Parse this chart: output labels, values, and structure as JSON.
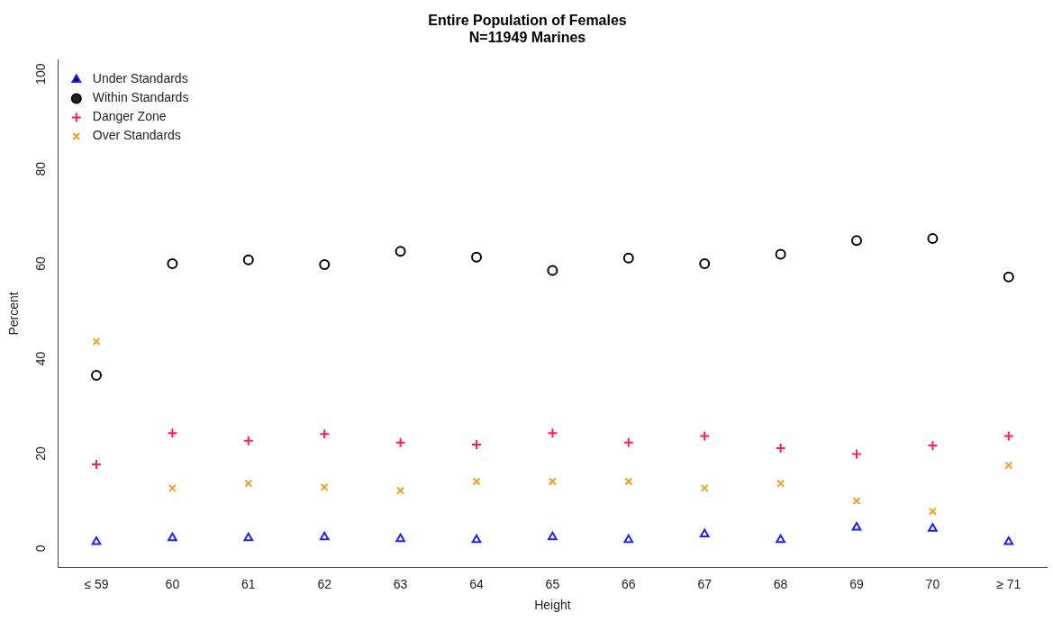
{
  "chart_data": {
    "type": "scatter",
    "title": "Entire Population of Females",
    "subtitle": "N=11949 Marines",
    "xlabel": "Height",
    "ylabel": "Percent",
    "categories": [
      "≤ 59",
      "60",
      "61",
      "62",
      "63",
      "64",
      "65",
      "66",
      "67",
      "68",
      "69",
      "70",
      "≥ 71"
    ],
    "series": [
      {
        "name": "Under Standards",
        "color": "#1f1fff",
        "marker": "triangle",
        "values": [
          1.4,
          2.2,
          2.2,
          2.4,
          2,
          1.8,
          2.4,
          1.8,
          3,
          1.8,
          4.4,
          4.2,
          1.4
        ]
      },
      {
        "name": "Within Standards",
        "color": "#000000",
        "marker": "circle",
        "values": [
          36.5,
          60,
          60.8,
          59.8,
          62.6,
          61.4,
          58.6,
          61.2,
          60,
          62,
          64.9,
          65.3,
          57.2
        ]
      },
      {
        "name": "Danger Zone",
        "color": "#ff1f4f",
        "marker": "cross",
        "values": [
          17.7,
          24.3,
          22.7,
          24.1,
          22.3,
          21.9,
          24.3,
          22.3,
          23.7,
          21.1,
          19.9,
          21.7,
          23.7
        ]
      },
      {
        "name": "Over Standards",
        "color": "#f0a020",
        "marker": "x",
        "values": [
          43.6,
          12.7,
          13.7,
          12.9,
          12.2,
          14.1,
          14.1,
          14.1,
          12.7,
          13.7,
          10,
          7.8,
          17.5
        ]
      }
    ],
    "ylim": [
      -4,
      103
    ],
    "yticks": [
      0,
      20,
      40,
      60,
      80,
      100
    ],
    "grid": false,
    "legend": "top left"
  }
}
